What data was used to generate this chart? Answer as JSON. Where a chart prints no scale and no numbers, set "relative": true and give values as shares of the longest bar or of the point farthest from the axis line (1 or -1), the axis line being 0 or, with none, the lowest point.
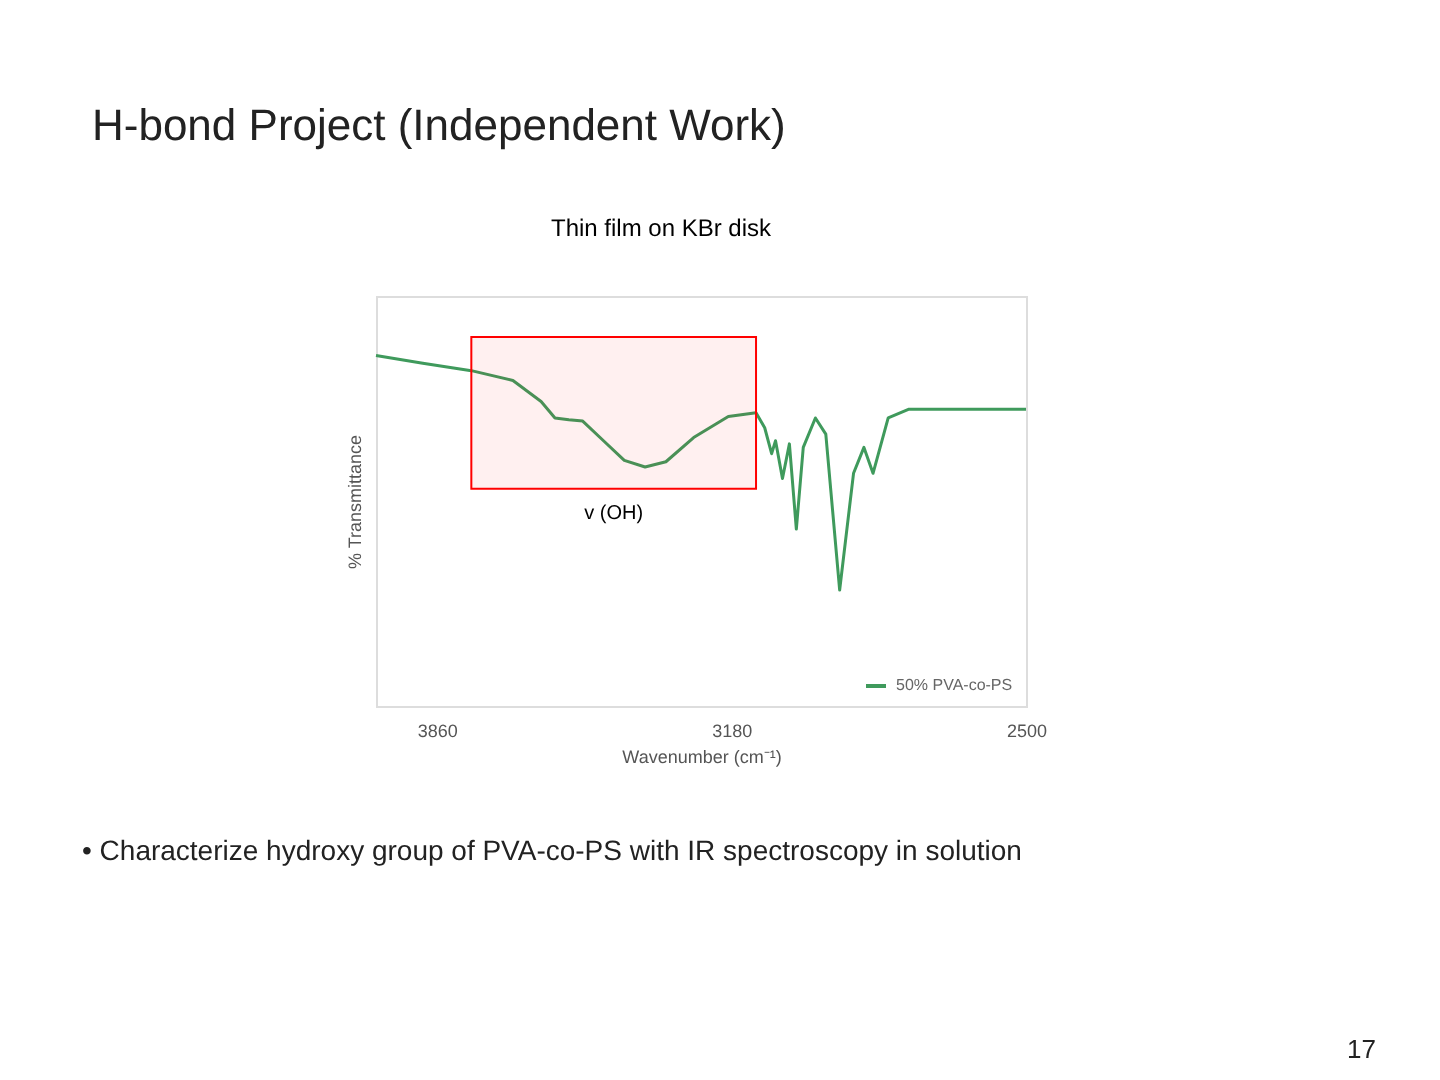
{
  "chart_data": {
    "type": "line",
    "title": "Thin film on KBr disk",
    "xlabel": "Wavenumber (cm⁻¹)",
    "ylabel": "% Transmittance",
    "relative": true,
    "x": [
      4000,
      3892,
      3780,
      3684,
      3619,
      3587,
      3555,
      3523,
      3475,
      3427,
      3379,
      3331,
      3267,
      3187,
      3123,
      3103,
      3087,
      3078,
      3062,
      3046,
      3030,
      3014,
      2986,
      2962,
      2930,
      2898,
      2874,
      2853,
      2818,
      2770,
      2500
    ],
    "xlim": [
      4000,
      2500
    ],
    "xticks": [
      3860,
      3180,
      2500
    ],
    "series": [
      {
        "name": "50% PVA-co-PS",
        "color": "#3f9a5c",
        "values": [
          1.0,
          0.978,
          0.957,
          0.929,
          0.869,
          0.822,
          0.817,
          0.813,
          0.757,
          0.701,
          0.682,
          0.697,
          0.766,
          0.826,
          0.837,
          0.794,
          0.72,
          0.757,
          0.649,
          0.748,
          0.505,
          0.738,
          0.822,
          0.776,
          0.331,
          0.664,
          0.738,
          0.664,
          0.822,
          0.847,
          0.847
        ]
      }
    ],
    "bands": [
      {
        "axis": "x",
        "from": 3780,
        "to": 3123,
        "label": "v (OH)",
        "color": "#ff0000"
      }
    ],
    "legend": "bottom right",
    "grid": false,
    "annotations": [
      "H-bond Project (Independent Work)",
      "•  Characterize hydroxy group of PVA-co-PS with IR spectroscopy in solution",
      "17"
    ]
  }
}
